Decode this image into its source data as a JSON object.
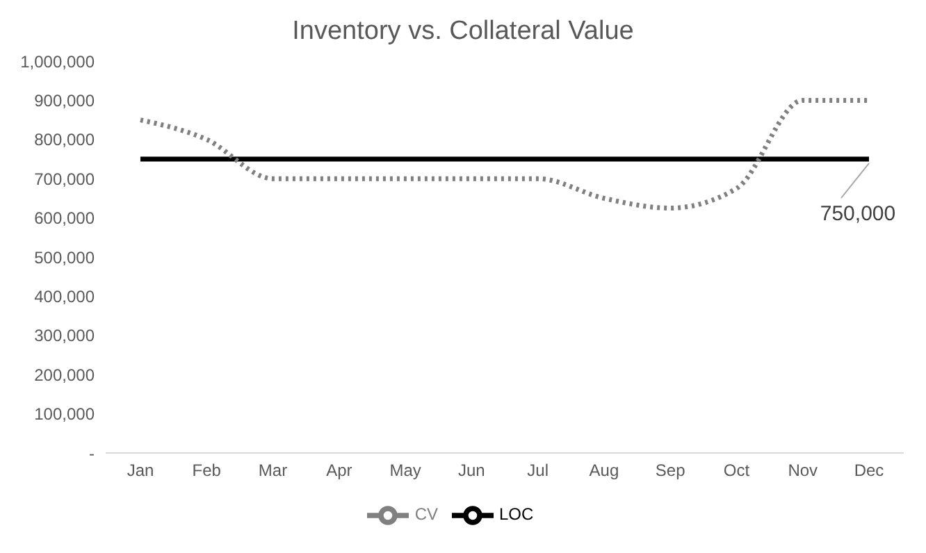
{
  "chart_data": {
    "type": "line",
    "title": "Inventory vs. Collateral Value",
    "categories": [
      "Jan",
      "Feb",
      "Mar",
      "Apr",
      "May",
      "Jun",
      "Jul",
      "Aug",
      "Sep",
      "Oct",
      "Nov",
      "Dec"
    ],
    "series": [
      {
        "name": "LOC",
        "color": "#000000",
        "line_style": "solid",
        "values": [
          750000,
          750000,
          750000,
          750000,
          750000,
          750000,
          750000,
          750000,
          750000,
          750000,
          750000,
          750000
        ]
      },
      {
        "name": "CV",
        "color": "#808080",
        "line_style": "dotted",
        "values": [
          850000,
          800000,
          700000,
          700000,
          700000,
          700000,
          700000,
          650000,
          625000,
          675000,
          900000,
          900000
        ]
      }
    ],
    "ylim": [
      0,
      1000000
    ],
    "yticks": [
      {
        "value": 0,
        "label": "-"
      },
      {
        "value": 100000,
        "label": "100,000"
      },
      {
        "value": 200000,
        "label": "200,000"
      },
      {
        "value": 300000,
        "label": "300,000"
      },
      {
        "value": 400000,
        "label": "400,000"
      },
      {
        "value": 500000,
        "label": "500,000"
      },
      {
        "value": 600000,
        "label": "600,000"
      },
      {
        "value": 700000,
        "label": "700,000"
      },
      {
        "value": 800000,
        "label": "800,000"
      },
      {
        "value": 900000,
        "label": "900,000"
      },
      {
        "value": 1000000,
        "label": "1,000,000"
      }
    ],
    "annotations": [
      {
        "text": "750,000",
        "x": "Dec",
        "y": 750000
      }
    ],
    "grid": false,
    "legend": "bottom",
    "marker": "none"
  }
}
